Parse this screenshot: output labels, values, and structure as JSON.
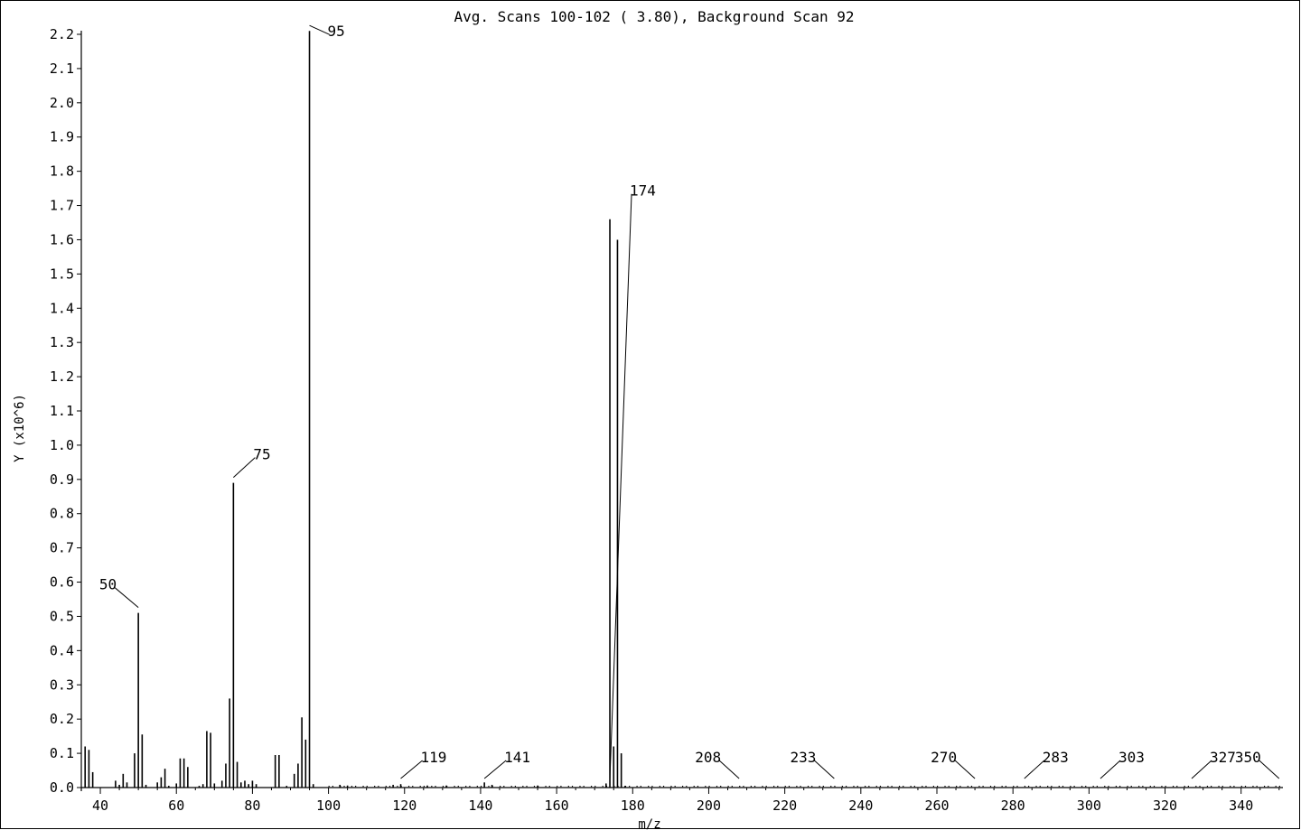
{
  "chart_data": {
    "type": "bar",
    "title": "Avg. Scans 100-102 ( 3.80), Background Scan 92",
    "xlabel": "m/z",
    "ylabel": "Y (x10^6)",
    "xlim": [
      35,
      351
    ],
    "ylim": [
      0,
      2.2
    ],
    "x_ticks": [
      40,
      60,
      80,
      100,
      120,
      140,
      160,
      180,
      200,
      220,
      240,
      260,
      280,
      300,
      320,
      340
    ],
    "y_ticks": [
      "0.0",
      "0.1",
      "0.2",
      "0.3",
      "0.4",
      "0.5",
      "0.6",
      "0.7",
      "0.8",
      "0.9",
      "1.0",
      "1.1",
      "1.2",
      "1.3",
      "1.4",
      "1.5",
      "1.6",
      "1.7",
      "1.8",
      "1.9",
      "2.0",
      "2.1",
      "2.2"
    ],
    "grid": false,
    "peaks": [
      {
        "mz": 36,
        "y": 0.12
      },
      {
        "mz": 37,
        "y": 0.11
      },
      {
        "mz": 38,
        "y": 0.045
      },
      {
        "mz": 44,
        "y": 0.02
      },
      {
        "mz": 45,
        "y": 0.008
      },
      {
        "mz": 46,
        "y": 0.04
      },
      {
        "mz": 47,
        "y": 0.015
      },
      {
        "mz": 49,
        "y": 0.1
      },
      {
        "mz": 50,
        "y": 0.51
      },
      {
        "mz": 51,
        "y": 0.155
      },
      {
        "mz": 52,
        "y": 0.008
      },
      {
        "mz": 55,
        "y": 0.015
      },
      {
        "mz": 56,
        "y": 0.03
      },
      {
        "mz": 57,
        "y": 0.055
      },
      {
        "mz": 58,
        "y": 0.005
      },
      {
        "mz": 60,
        "y": 0.012
      },
      {
        "mz": 61,
        "y": 0.085
      },
      {
        "mz": 62,
        "y": 0.085
      },
      {
        "mz": 63,
        "y": 0.06
      },
      {
        "mz": 66,
        "y": 0.005
      },
      {
        "mz": 67,
        "y": 0.01
      },
      {
        "mz": 68,
        "y": 0.165
      },
      {
        "mz": 69,
        "y": 0.16
      },
      {
        "mz": 70,
        "y": 0.012
      },
      {
        "mz": 72,
        "y": 0.02
      },
      {
        "mz": 73,
        "y": 0.07
      },
      {
        "mz": 74,
        "y": 0.26
      },
      {
        "mz": 75,
        "y": 0.89
      },
      {
        "mz": 76,
        "y": 0.075
      },
      {
        "mz": 77,
        "y": 0.015
      },
      {
        "mz": 78,
        "y": 0.02
      },
      {
        "mz": 79,
        "y": 0.01
      },
      {
        "mz": 80,
        "y": 0.02
      },
      {
        "mz": 81,
        "y": 0.01
      },
      {
        "mz": 86,
        "y": 0.095
      },
      {
        "mz": 87,
        "y": 0.095
      },
      {
        "mz": 89,
        "y": 0.005
      },
      {
        "mz": 91,
        "y": 0.04
      },
      {
        "mz": 92,
        "y": 0.07
      },
      {
        "mz": 93,
        "y": 0.205
      },
      {
        "mz": 94,
        "y": 0.14
      },
      {
        "mz": 95,
        "y": 2.21
      },
      {
        "mz": 96,
        "y": 0.01
      },
      {
        "mz": 103,
        "y": 0.008
      },
      {
        "mz": 105,
        "y": 0.006
      },
      {
        "mz": 117,
        "y": 0.008
      },
      {
        "mz": 119,
        "y": 0.01
      },
      {
        "mz": 126,
        "y": 0.006
      },
      {
        "mz": 131,
        "y": 0.006
      },
      {
        "mz": 141,
        "y": 0.015
      },
      {
        "mz": 143,
        "y": 0.008
      },
      {
        "mz": 155,
        "y": 0.006
      },
      {
        "mz": 173,
        "y": 0.012
      },
      {
        "mz": 174,
        "y": 1.66
      },
      {
        "mz": 175,
        "y": 0.12
      },
      {
        "mz": 176,
        "y": 1.6
      },
      {
        "mz": 177,
        "y": 0.1
      },
      {
        "mz": 178,
        "y": 0.005
      }
    ],
    "labeled_peaks": [
      {
        "mz": 50,
        "y": 0.51,
        "label": "50"
      },
      {
        "mz": 75,
        "y": 0.89,
        "label": "75"
      },
      {
        "mz": 95,
        "y": 2.21,
        "label": "95"
      },
      {
        "mz": 119,
        "y": 0.01,
        "label": "119"
      },
      {
        "mz": 141,
        "y": 0.015,
        "label": "141"
      },
      {
        "mz": 174,
        "y": 1.66,
        "label": "174"
      },
      {
        "mz": 208,
        "y": 0.005,
        "label": "208"
      },
      {
        "mz": 233,
        "y": 0.005,
        "label": "233"
      },
      {
        "mz": 270,
        "y": 0.005,
        "label": "270"
      },
      {
        "mz": 283,
        "y": 0.005,
        "label": "283"
      },
      {
        "mz": 303,
        "y": 0.005,
        "label": "303"
      },
      {
        "mz": 327,
        "y": 0.005,
        "label": "327"
      },
      {
        "mz": 350,
        "y": 0.005,
        "label": "350"
      }
    ]
  }
}
